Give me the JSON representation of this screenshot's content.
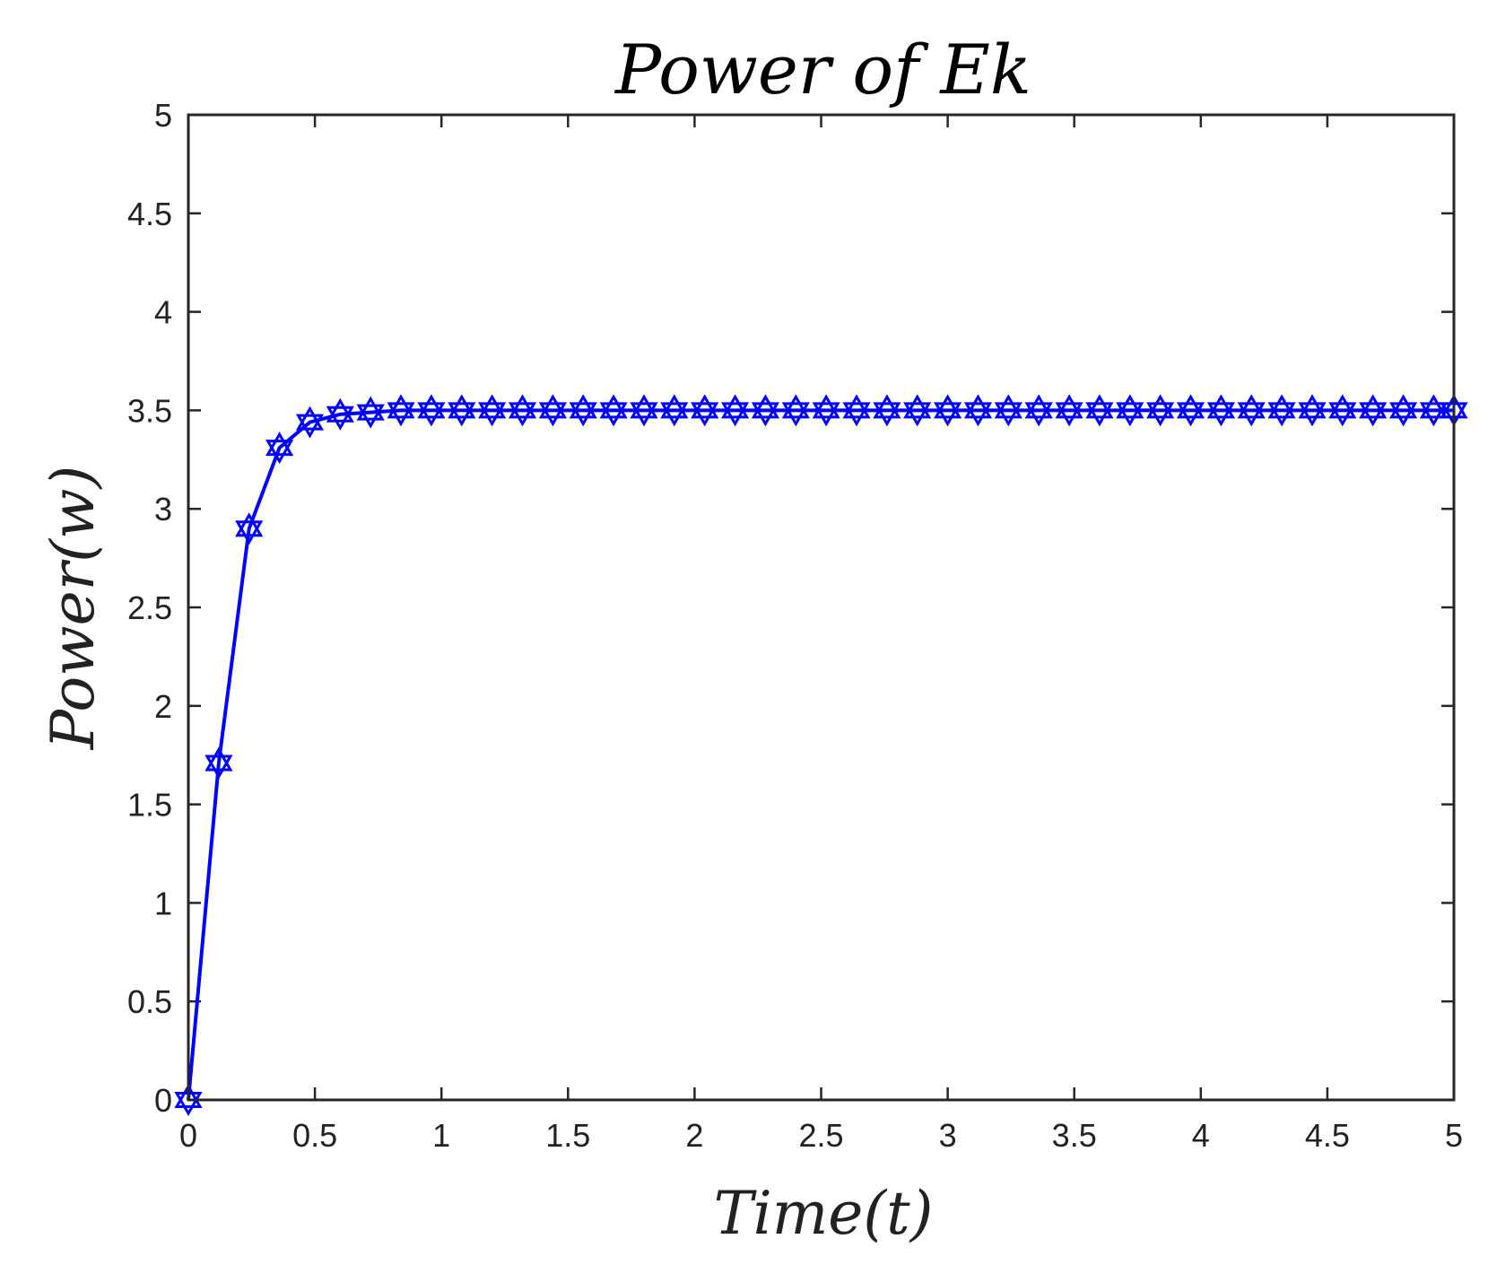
{
  "chart_data": {
    "type": "line",
    "title": "Power of Ek",
    "xlabel": "Time(t)",
    "ylabel": "Power(w)",
    "xlim": [
      0,
      5
    ],
    "ylim": [
      0,
      5
    ],
    "x_ticks": [
      "0",
      "0.5",
      "1",
      "1.5",
      "2",
      "2.5",
      "3",
      "3.5",
      "4",
      "4.5",
      "5"
    ],
    "y_ticks": [
      "0",
      "0.5",
      "1",
      "1.5",
      "2",
      "2.5",
      "3",
      "3.5",
      "4",
      "4.5",
      "5"
    ],
    "grid": false,
    "marker": "hexagram",
    "color": "#0000ff",
    "series": [
      {
        "x": [
          0,
          0.12,
          0.24,
          0.36,
          0.48,
          0.6,
          0.72,
          0.84,
          0.96,
          1.08,
          1.2,
          1.32,
          1.44,
          1.56,
          1.68,
          1.8,
          1.92,
          2.04,
          2.16,
          2.28,
          2.4,
          2.52,
          2.64,
          2.76,
          2.88,
          3.0,
          3.12,
          3.24,
          3.36,
          3.48,
          3.6,
          3.72,
          3.84,
          3.96,
          4.08,
          4.2,
          4.32,
          4.44,
          4.56,
          4.68,
          4.8,
          4.92,
          5.0
        ],
        "values": [
          0,
          1.71,
          2.9,
          3.31,
          3.44,
          3.48,
          3.49,
          3.5,
          3.5,
          3.5,
          3.5,
          3.5,
          3.5,
          3.5,
          3.5,
          3.5,
          3.5,
          3.5,
          3.5,
          3.5,
          3.5,
          3.5,
          3.5,
          3.5,
          3.5,
          3.5,
          3.5,
          3.5,
          3.5,
          3.5,
          3.5,
          3.5,
          3.5,
          3.5,
          3.5,
          3.5,
          3.5,
          3.5,
          3.5,
          3.5,
          3.5,
          3.5,
          3.5
        ]
      }
    ]
  }
}
